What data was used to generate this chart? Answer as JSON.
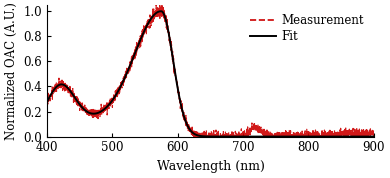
{
  "title": "",
  "xlabel": "Wavelength (nm)",
  "ylabel": "Normalized OAC (A.U.)",
  "xlim": [
    400,
    900
  ],
  "ylim": [
    0,
    1.05
  ],
  "xticks": [
    400,
    500,
    600,
    700,
    800,
    900
  ],
  "yticks": [
    0,
    0.2,
    0.4,
    0.6,
    0.8,
    1
  ],
  "fit_color": "#000000",
  "measurement_color": "#cc0000",
  "legend_labels": [
    "Measurement",
    "Fit"
  ],
  "background_color": "#ffffff",
  "figsize": [
    3.9,
    1.78
  ],
  "dpi": 100
}
